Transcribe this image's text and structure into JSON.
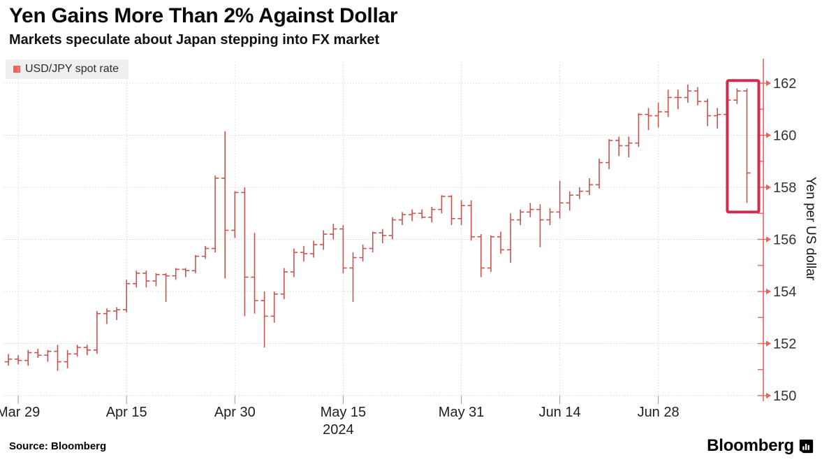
{
  "header": {
    "title": "Yen Gains More Than 2% Against Dollar",
    "subtitle": "Markets speculate about Japan stepping into FX market"
  },
  "legend": {
    "label": "USD/JPY spot rate"
  },
  "chart_data": {
    "type": "ohlc-bar",
    "title": "USD/JPY spot rate",
    "ylabel": "Yen per US dollar",
    "year_label": "2024",
    "ylim": [
      150,
      162
    ],
    "grid": true,
    "y_major_ticks": [
      162,
      160,
      158,
      156,
      154,
      152,
      150
    ],
    "y_minor_ticks": [
      161,
      159,
      157,
      155,
      153,
      151
    ],
    "x_ticks": [
      {
        "label": "Mar 29",
        "index": 1
      },
      {
        "label": "Apr 15",
        "index": 12
      },
      {
        "label": "Apr 30",
        "index": 23
      },
      {
        "label": "May 15",
        "index": 34
      },
      {
        "label": "May 31",
        "index": 46
      },
      {
        "label": "Jun 14",
        "index": 56
      },
      {
        "label": "Jun 28",
        "index": 66
      }
    ],
    "bars_format": [
      "date",
      "open",
      "high",
      "low",
      "close"
    ],
    "bars": [
      [
        "Mar 28",
        151.3,
        151.6,
        151.15,
        151.4
      ],
      [
        "Mar 29",
        151.4,
        151.55,
        151.2,
        151.35
      ],
      [
        "Apr 1",
        151.35,
        151.75,
        151.15,
        151.65
      ],
      [
        "Apr 2",
        151.65,
        151.8,
        151.45,
        151.55
      ],
      [
        "Apr 3",
        151.55,
        151.75,
        151.3,
        151.7
      ],
      [
        "Apr 4",
        151.7,
        151.95,
        150.95,
        151.3
      ],
      [
        "Apr 5",
        151.3,
        151.75,
        151.05,
        151.6
      ],
      [
        "Apr 8",
        151.6,
        151.95,
        151.5,
        151.85
      ],
      [
        "Apr 9",
        151.85,
        151.95,
        151.55,
        151.75
      ],
      [
        "Apr 10",
        151.75,
        153.25,
        151.6,
        153.15
      ],
      [
        "Apr 11",
        153.15,
        153.35,
        152.75,
        153.25
      ],
      [
        "Apr 12",
        153.25,
        153.4,
        152.9,
        153.3
      ],
      [
        "Apr 15",
        153.3,
        154.45,
        153.2,
        154.3
      ],
      [
        "Apr 16",
        154.3,
        154.8,
        154.15,
        154.7
      ],
      [
        "Apr 17",
        154.7,
        154.8,
        154.15,
        154.4
      ],
      [
        "Apr 18",
        154.4,
        154.7,
        154.2,
        154.65
      ],
      [
        "Apr 19",
        154.65,
        154.7,
        153.6,
        154.6
      ],
      [
        "Apr 22",
        154.6,
        154.9,
        154.45,
        154.85
      ],
      [
        "Apr 23",
        154.85,
        154.9,
        154.55,
        154.8
      ],
      [
        "Apr 24",
        154.8,
        155.4,
        154.7,
        155.35
      ],
      [
        "Apr 25",
        155.35,
        155.75,
        155.25,
        155.65
      ],
      [
        "Apr 26",
        155.65,
        158.45,
        155.5,
        158.35
      ],
      [
        "Apr 29",
        158.35,
        160.15,
        154.5,
        156.35
      ],
      [
        "Apr 30",
        156.35,
        157.85,
        156.05,
        157.8
      ],
      [
        "May 1",
        157.8,
        158.0,
        153.05,
        154.55
      ],
      [
        "May 2",
        154.55,
        156.25,
        153.15,
        153.65
      ],
      [
        "May 3",
        153.65,
        154.0,
        151.85,
        153.05
      ],
      [
        "May 6",
        153.05,
        154.0,
        152.8,
        153.9
      ],
      [
        "May 7",
        153.9,
        154.9,
        153.7,
        154.75
      ],
      [
        "May 8",
        154.75,
        155.65,
        154.55,
        155.5
      ],
      [
        "May 9",
        155.5,
        155.75,
        155.15,
        155.45
      ],
      [
        "May 10",
        155.45,
        155.95,
        155.3,
        155.8
      ],
      [
        "May 13",
        155.8,
        156.35,
        155.6,
        156.2
      ],
      [
        "May 14",
        156.2,
        156.6,
        156.0,
        156.4
      ],
      [
        "May 15",
        156.4,
        156.55,
        154.7,
        154.9
      ],
      [
        "May 16",
        154.9,
        155.5,
        153.6,
        155.3
      ],
      [
        "May 17",
        155.3,
        155.8,
        155.15,
        155.65
      ],
      [
        "May 20",
        155.65,
        156.3,
        155.5,
        156.25
      ],
      [
        "May 21",
        156.25,
        156.4,
        155.85,
        156.15
      ],
      [
        "May 22",
        156.15,
        156.85,
        156.0,
        156.75
      ],
      [
        "May 23",
        156.75,
        157.05,
        156.55,
        156.95
      ],
      [
        "May 24",
        156.95,
        157.15,
        156.7,
        157.0
      ],
      [
        "May 27",
        157.0,
        157.15,
        156.8,
        156.85
      ],
      [
        "May 28",
        156.85,
        157.25,
        156.65,
        157.15
      ],
      [
        "May 29",
        157.15,
        157.7,
        157.0,
        157.65
      ],
      [
        "May 30",
        157.65,
        157.7,
        156.55,
        156.8
      ],
      [
        "May 31",
        156.8,
        157.5,
        156.55,
        157.3
      ],
      [
        "Jun 3",
        157.3,
        157.5,
        155.95,
        156.1
      ],
      [
        "Jun 4",
        156.1,
        156.2,
        154.55,
        154.9
      ],
      [
        "Jun 5",
        154.9,
        156.15,
        154.75,
        156.1
      ],
      [
        "Jun 6",
        156.1,
        156.3,
        155.45,
        155.6
      ],
      [
        "Jun 7",
        155.6,
        157.0,
        155.1,
        156.75
      ],
      [
        "Jun 10",
        156.75,
        157.15,
        156.55,
        157.05
      ],
      [
        "Jun 11",
        157.05,
        157.4,
        156.85,
        157.15
      ],
      [
        "Jun 12",
        157.15,
        157.35,
        155.7,
        156.75
      ],
      [
        "Jun 13",
        156.75,
        157.2,
        156.55,
        157.05
      ],
      [
        "Jun 14",
        157.05,
        158.25,
        156.8,
        157.4
      ],
      [
        "Jun 17",
        157.4,
        157.85,
        157.1,
        157.7
      ],
      [
        "Jun 18",
        157.7,
        158.0,
        157.55,
        157.85
      ],
      [
        "Jun 19",
        157.85,
        158.35,
        157.7,
        158.1
      ],
      [
        "Jun 20",
        158.1,
        159.1,
        157.95,
        158.95
      ],
      [
        "Jun 21",
        158.95,
        159.85,
        158.7,
        159.8
      ],
      [
        "Jun 24",
        159.8,
        159.95,
        159.2,
        159.6
      ],
      [
        "Jun 25",
        159.6,
        159.95,
        159.15,
        159.7
      ],
      [
        "Jun 26",
        159.7,
        160.85,
        159.55,
        160.8
      ],
      [
        "Jun 27",
        160.8,
        161.05,
        160.2,
        160.75
      ],
      [
        "Jun 28",
        160.75,
        161.25,
        160.3,
        160.9
      ],
      [
        "Jul 1",
        160.9,
        161.75,
        160.7,
        161.45
      ],
      [
        "Jul 2",
        161.45,
        161.75,
        161.0,
        161.45
      ],
      [
        "Jul 3",
        161.45,
        161.95,
        161.25,
        161.7
      ],
      [
        "Jul 4",
        161.7,
        161.85,
        161.15,
        161.3
      ],
      [
        "Jul 5",
        161.3,
        161.4,
        160.35,
        160.75
      ],
      [
        "Jul 8",
        160.75,
        161.05,
        160.25,
        160.8
      ],
      [
        "Jul 9",
        160.8,
        161.5,
        160.65,
        161.35
      ],
      [
        "Jul 10",
        161.35,
        161.8,
        161.2,
        161.7
      ],
      [
        "Jul 11",
        161.7,
        161.8,
        157.4,
        158.55
      ]
    ],
    "annotation_box": {
      "from_index": 74,
      "to_index": 75,
      "y_top": 162.1,
      "y_bottom": 157.05
    }
  },
  "footer": {
    "source": "Source: Bloomberg",
    "brand": "Bloomberg"
  },
  "colors": {
    "bar": "#c65550",
    "axis": "#ec615c",
    "box": "#d02c50",
    "grid": "#d7d7d7",
    "legend_bg": "#efefef",
    "swatch": "#f4615c"
  }
}
